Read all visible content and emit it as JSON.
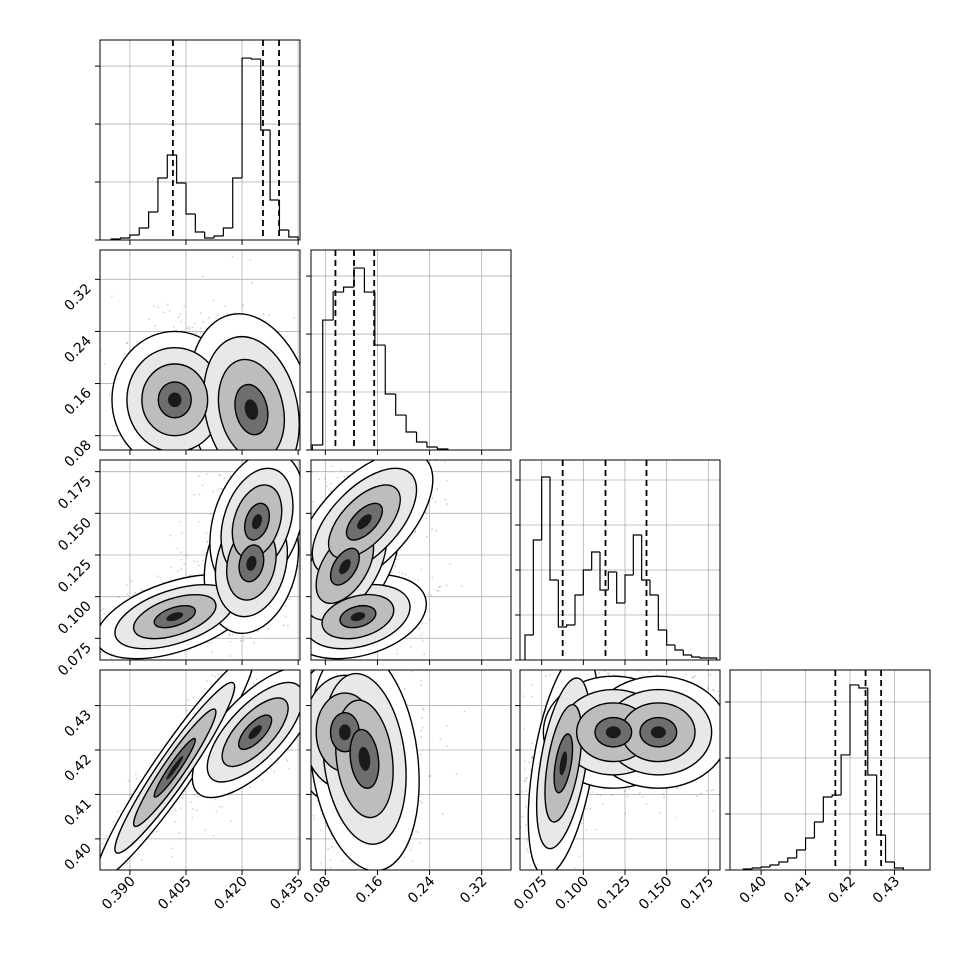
{
  "chart_data": {
    "type": "corner",
    "grid": true,
    "color": "#000000",
    "parameters": [
      {
        "lim": [
          0.382,
          0.4355
        ],
        "ticks": [
          {
            "value": 0.39,
            "label": "0.390"
          },
          0.405,
          {
            "value": 0.42,
            "label": "0.420"
          },
          0.435
        ],
        "bins": [
          0.385,
          0.3875,
          0.39,
          0.3925,
          0.395,
          0.3975,
          0.4,
          0.4025,
          0.405,
          0.4075,
          0.41,
          0.4125,
          0.415,
          0.4175,
          0.42,
          0.4225,
          0.425,
          0.4275,
          0.43,
          0.4325,
          0.435
        ],
        "counts": [
          17,
          34,
          86,
          207,
          483,
          1069,
          1466,
          983,
          448,
          138,
          34,
          69,
          207,
          1069,
          3138,
          3121,
          1897,
          690,
          172,
          52
        ],
        "ylim": [
          0,
          3450
        ],
        "yticks": [
          0,
          1000,
          2000,
          3000
        ],
        "quantiles": [
          0.4015,
          0.4256,
          0.4299
        ]
      },
      {
        "lim": [
          0.058,
          0.365
        ],
        "ticks": [
          0.08,
          0.16,
          0.24,
          0.32
        ],
        "bins": [
          0.06,
          0.076,
          0.092,
          0.108,
          0.124,
          0.14,
          0.156,
          0.172,
          0.188,
          0.204,
          0.22,
          0.236,
          0.252,
          0.268
        ],
        "counts": [
          86,
          2241,
          2724,
          2810,
          3138,
          2724,
          1810,
          966,
          603,
          310,
          138,
          52,
          17
        ],
        "ylim": [
          0,
          3450
        ],
        "yticks": [
          0,
          1000,
          2000,
          3000
        ],
        "quantiles": [
          0.0955,
          0.124,
          0.155
        ]
      },
      {
        "lim": [
          0.062,
          0.182
        ],
        "ticks": [
          0.075,
          {
            "value": 0.1,
            "label": "0.100"
          },
          0.125,
          {
            "value": 0.15,
            "label": "0.150"
          },
          0.175
        ],
        "bins": [
          0.065,
          0.07,
          0.075,
          0.08,
          0.085,
          0.09,
          0.095,
          0.1,
          0.105,
          0.11,
          0.115,
          0.12,
          0.125,
          0.13,
          0.135,
          0.14,
          0.145,
          0.15,
          0.155,
          0.16,
          0.165,
          0.17,
          0.175,
          0.18
        ],
        "counts": [
          556,
          2667,
          4067,
          1778,
          733,
          778,
          1444,
          2000,
          2400,
          1556,
          1956,
          1267,
          1889,
          2778,
          1778,
          1444,
          667,
          333,
          222,
          111,
          67,
          44,
          44
        ],
        "ylim": [
          0,
          4444
        ],
        "yticks": [
          0,
          1000,
          2000,
          3000,
          4000
        ],
        "quantiles": [
          0.0876,
          0.1133,
          0.1379
        ]
      },
      {
        "lim": [
          0.393,
          0.438
        ],
        "ticks": [
          {
            "value": 0.4,
            "label": "0.40"
          },
          0.41,
          0.42,
          0.43
        ],
        "bins": [
          0.396,
          0.398,
          0.4,
          0.402,
          0.404,
          0.406,
          0.408,
          0.41,
          0.412,
          0.414,
          0.416,
          0.418,
          0.42,
          0.422,
          0.424,
          0.426,
          0.428,
          0.43,
          0.432
        ],
        "counts": [
          18,
          36,
          54,
          89,
          143,
          214,
          357,
          571,
          857,
          1304,
          1339,
          2054,
          3304,
          3250,
          1696,
          625,
          143,
          36
        ],
        "ylim": [
          0,
          3571
        ],
        "yticks": [
          0,
          1000,
          2000,
          3000
        ],
        "quantiles": [
          0.4167,
          0.4235,
          0.427
        ]
      }
    ],
    "panels": [
      [
        [
          {
            "x": 0.402,
            "y": 0.135,
            "sx": 0.004,
            "sy": 0.025,
            "rho": 0.0
          },
          {
            "x": 0.4225,
            "y": 0.12,
            "sx": 0.004,
            "sy": 0.035,
            "rho": -0.2
          }
        ]
      ],
      [
        [
          {
            "x": 0.402,
            "y": 0.088,
            "sx": 0.005,
            "sy": 0.006,
            "rho": 0.5
          },
          {
            "x": 0.4225,
            "y": 0.12,
            "sx": 0.003,
            "sy": 0.01,
            "rho": 0.2
          },
          {
            "x": 0.424,
            "y": 0.145,
            "sx": 0.003,
            "sy": 0.01,
            "rho": 0.3
          }
        ],
        [
          {
            "x": 0.13,
            "y": 0.088,
            "sx": 0.025,
            "sy": 0.006,
            "rho": 0.3
          },
          {
            "x": 0.11,
            "y": 0.118,
            "sx": 0.02,
            "sy": 0.01,
            "rho": 0.5
          },
          {
            "x": 0.14,
            "y": 0.145,
            "sx": 0.025,
            "sy": 0.01,
            "rho": 0.6
          }
        ]
      ],
      [
        [
          {
            "x": 0.402,
            "y": 0.416,
            "sx": 0.005,
            "sy": 0.006,
            "rho": 0.95
          },
          {
            "x": 0.4235,
            "y": 0.424,
            "sx": 0.004,
            "sy": 0.0035,
            "rho": 0.7
          }
        ],
        [
          {
            "x": 0.11,
            "y": 0.424,
            "sx": 0.02,
            "sy": 0.004,
            "rho": 0.0
          },
          {
            "x": 0.14,
            "y": 0.418,
            "sx": 0.02,
            "sy": 0.006,
            "rho": -0.2
          }
        ],
        [
          {
            "x": 0.088,
            "y": 0.417,
            "sx": 0.005,
            "sy": 0.006,
            "rho": 0.5
          },
          {
            "x": 0.118,
            "y": 0.424,
            "sx": 0.01,
            "sy": 0.003,
            "rho": 0.0
          },
          {
            "x": 0.145,
            "y": 0.424,
            "sx": 0.01,
            "sy": 0.003,
            "rho": 0.0
          }
        ]
      ]
    ]
  }
}
